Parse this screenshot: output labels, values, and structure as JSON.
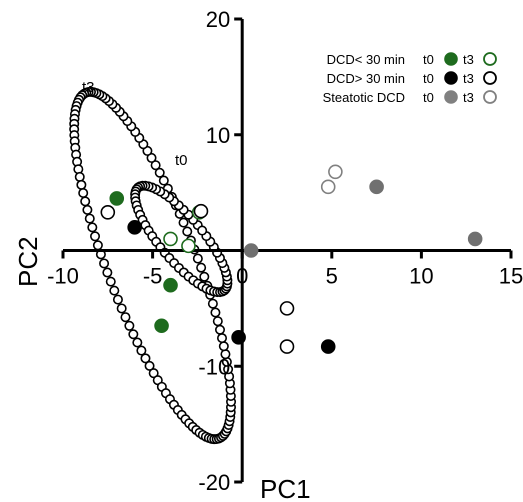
{
  "chart_data": {
    "type": "scatter",
    "title": "",
    "xlabel": "PC1",
    "ylabel": "PC2",
    "xlim": [
      -10,
      15
    ],
    "ylim": [
      -20,
      20
    ],
    "x_ticks": [
      "-10",
      "-5",
      "0",
      "5",
      "10",
      "15"
    ],
    "y_ticks": [
      "-20",
      "-10",
      "10",
      "20"
    ],
    "series": [
      {
        "name": "DCD< 30 min t0",
        "fill": "#1e6b1e",
        "stroke": "#1e6b1e",
        "points": [
          [
            -7.0,
            4.5
          ],
          [
            -4.0,
            -3.0
          ],
          [
            -4.5,
            -6.5
          ]
        ]
      },
      {
        "name": "DCD< 30 min t3",
        "fill": "none",
        "stroke": "#1e6b1e",
        "points": [
          [
            -2.4,
            3.3
          ],
          [
            -4.0,
            1.0
          ],
          [
            -3.0,
            0.4
          ]
        ]
      },
      {
        "name": "DCD> 30 min t0",
        "fill": "#000000",
        "stroke": "#000000",
        "points": [
          [
            -6.0,
            2.0
          ],
          [
            -0.2,
            -7.5
          ],
          [
            4.8,
            -8.3
          ]
        ]
      },
      {
        "name": "DCD> 30 min t3",
        "fill": "none",
        "stroke": "#000000",
        "points": [
          [
            -7.5,
            3.3
          ],
          [
            -2.3,
            3.4
          ],
          [
            2.5,
            -5.0
          ],
          [
            2.5,
            -8.3
          ]
        ]
      },
      {
        "name": "Steatotic DCD t0",
        "fill": "#707070",
        "stroke": "#707070",
        "points": [
          [
            0.5,
            0.0
          ],
          [
            7.5,
            5.5
          ],
          [
            13.0,
            1.0
          ]
        ]
      },
      {
        "name": "Steatotic DCD t3",
        "fill": "none",
        "stroke": "#808080",
        "points": [
          [
            4.8,
            5.5
          ],
          [
            5.2,
            6.8
          ]
        ]
      }
    ],
    "ellipses": [
      {
        "label": "t3",
        "cx": -5.0,
        "cy": -1.3,
        "rx": 2.5,
        "ry": 16.0,
        "rot_deg": 21
      },
      {
        "label": "t0",
        "cx": -3.4,
        "cy": 1.0,
        "rx": 1.2,
        "ry": 5.8,
        "rot_deg": 40
      }
    ],
    "legend": {
      "position": "top-right",
      "rows": [
        {
          "label": "DCD< 30 min",
          "t0_label": "t0",
          "t3_label": "t3",
          "color": "#1e6b1e"
        },
        {
          "label": "DCD> 30 min",
          "t0_label": "t0",
          "t3_label": "t3",
          "color": "#000000"
        },
        {
          "label": "Steatotic DCD",
          "t0_label": "t0",
          "t3_label": "t3",
          "color": "#808080"
        }
      ]
    }
  }
}
